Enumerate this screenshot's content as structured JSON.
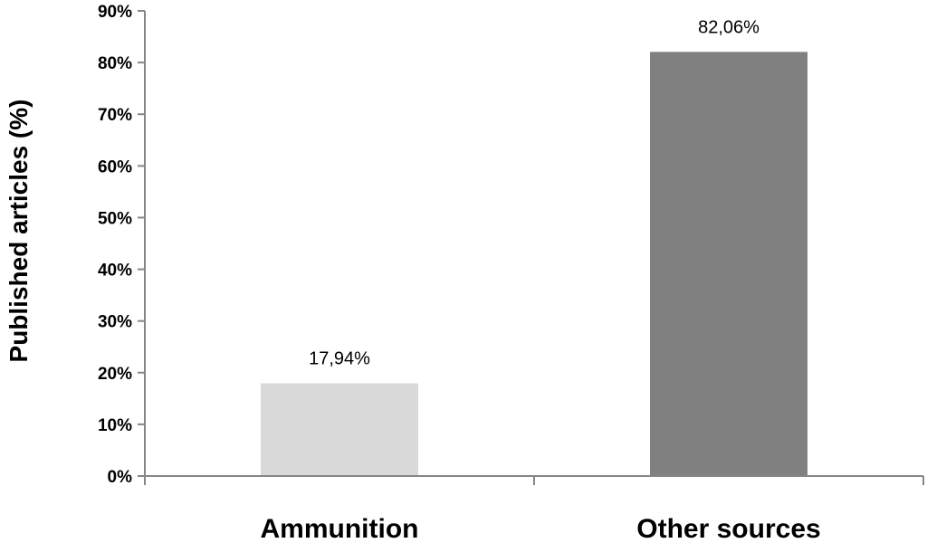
{
  "chart_data": {
    "type": "bar",
    "title": "",
    "xlabel": "",
    "ylabel": "Published articles (%)",
    "categories": [
      "Ammunition",
      "Other sources"
    ],
    "values": [
      17.94,
      82.06
    ],
    "data_labels": [
      "17,94%",
      "82,06%"
    ],
    "bar_colors": [
      "#d9d9d9",
      "#808080"
    ],
    "ylim": [
      0,
      90
    ],
    "yticks": [
      0,
      10,
      20,
      30,
      40,
      50,
      60,
      70,
      80,
      90
    ],
    "ytick_labels": [
      "0%",
      "10%",
      "20%",
      "30%",
      "40%",
      "50%",
      "60%",
      "70%",
      "80%",
      "90%"
    ],
    "grid": false,
    "legend": "none"
  }
}
